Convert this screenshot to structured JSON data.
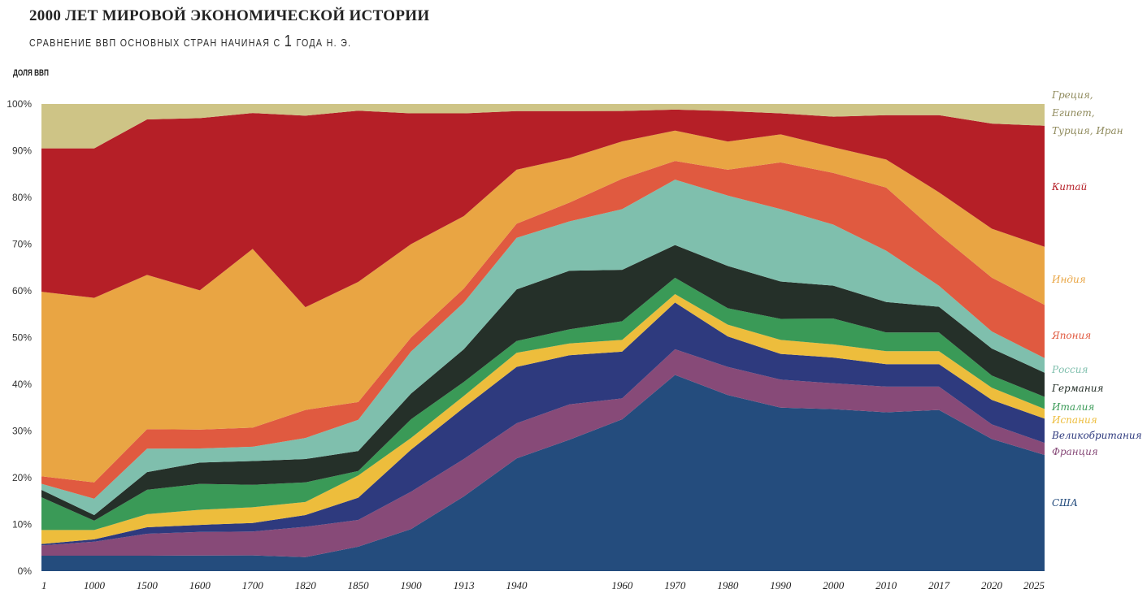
{
  "header": {
    "title": "2000 ЛЕТ МИРОВОЙ ЭКОНОМИЧЕСКОЙ ИСТОРИИ",
    "subtitle_pre": "СРАВНЕНИЕ ВВП ОСНОВНЫХ СТРАН НАЧИНАЯ С ",
    "subtitle_num": "1",
    "subtitle_post": " ГОДА Н. Э."
  },
  "chart_data": {
    "type": "area",
    "stacked": true,
    "normalized": true,
    "title": "2000 ЛЕТ МИРОВОЙ ЭКОНОМИЧЕСКОЙ ИСТОРИИ",
    "subtitle": "СРАВНЕНИЕ ВВП ОСНОВНЫХ СТРАН НАЧИНАЯ С 1 ГОДА Н. Э.",
    "ylabel": "ДОЛЯ ВВП",
    "xlabel": "",
    "ylim": [
      0,
      100
    ],
    "yticks": [
      "0%",
      "10%",
      "20%",
      "30%",
      "40%",
      "50%",
      "60%",
      "70%",
      "80%",
      "90%",
      "100%"
    ],
    "grid": false,
    "legend": "right",
    "x": [
      "1",
      "1000",
      "1500",
      "1600",
      "1700",
      "1820",
      "1850",
      "1900",
      "1913",
      "1940",
      "",
      "1960",
      "1970",
      "1980",
      "1990",
      "2000",
      "2010",
      "2017",
      "2020",
      "2025"
    ],
    "series": [
      {
        "name": "США",
        "color": "#244c7d",
        "values": [
          3.3,
          3.3,
          3.3,
          3.3,
          3.3,
          3.0,
          5.5,
          9.0,
          16.0,
          24.0,
          28.0,
          32.5,
          42.0,
          37.5,
          35.0,
          34.5,
          34.0,
          34.5,
          27.0,
          24.0
        ]
      },
      {
        "name": "Франция",
        "color": "#874a78",
        "values": [
          2.2,
          3.0,
          4.7,
          5.0,
          5.0,
          6.5,
          6.0,
          8.0,
          8.0,
          7.5,
          7.5,
          4.5,
          5.5,
          6.0,
          6.0,
          5.5,
          5.5,
          5.0,
          3.0,
          2.5
        ]
      },
      {
        "name": "Великобритания",
        "color": "#2e3a7e",
        "values": [
          0.3,
          0.5,
          1.4,
          1.5,
          1.8,
          2.5,
          5.0,
          9.0,
          11.0,
          12.0,
          10.5,
          10.0,
          10.0,
          6.5,
          5.5,
          5.5,
          4.8,
          4.8,
          5.0,
          5.0
        ]
      },
      {
        "name": "Испания",
        "color": "#edbd3c",
        "values": [
          3.0,
          2.0,
          2.8,
          3.2,
          3.3,
          2.8,
          5.0,
          2.5,
          2.5,
          3.0,
          2.5,
          2.5,
          1.8,
          2.5,
          3.0,
          2.8,
          2.8,
          2.8,
          2.5,
          2.0
        ]
      },
      {
        "name": "Италия",
        "color": "#3a9a57",
        "values": [
          7.0,
          2.0,
          5.2,
          5.5,
          4.7,
          4.2,
          1.0,
          4.0,
          3.0,
          2.5,
          3.0,
          4.0,
          3.5,
          3.5,
          4.5,
          5.5,
          4.0,
          4.0,
          2.5,
          2.5
        ]
      },
      {
        "name": "Германия",
        "color": "#253029",
        "values": [
          1.6,
          1.2,
          3.8,
          4.5,
          5.0,
          5.0,
          4.5,
          5.5,
          7.0,
          11.0,
          12.5,
          11.0,
          7.0,
          9.0,
          8.0,
          7.0,
          6.5,
          5.5,
          5.5,
          5.0
        ]
      },
      {
        "name": "Россия",
        "color": "#7fbfad",
        "values": [
          1.3,
          3.5,
          5.0,
          3.0,
          3.0,
          4.5,
          7.0,
          9.0,
          10.0,
          11.0,
          10.5,
          13.0,
          14.0,
          15.0,
          15.5,
          13.0,
          11.0,
          4.5,
          3.5,
          3.0
        ]
      },
      {
        "name": "Япония",
        "color": "#e05a40",
        "values": [
          1.6,
          3.5,
          4.2,
          4.0,
          4.0,
          6.0,
          4.0,
          3.0,
          3.0,
          3.0,
          4.0,
          6.5,
          4.0,
          5.5,
          10.0,
          11.0,
          13.5,
          11.0,
          11.0,
          11.0
        ]
      },
      {
        "name": "Индия",
        "color": "#e9a543",
        "values": [
          39.5,
          39.5,
          33.0,
          29.5,
          37.5,
          22.0,
          27.0,
          20.0,
          15.5,
          11.5,
          9.5,
          8.0,
          6.5,
          6.0,
          6.0,
          5.5,
          6.0,
          9.0,
          10.0,
          12.0
        ]
      },
      {
        "name": "Китай",
        "color": "#b51f27",
        "values": [
          30.7,
          32.0,
          33.3,
          36.5,
          28.5,
          41.0,
          38.5,
          28.0,
          22.0,
          12.5,
          10.0,
          6.5,
          4.5,
          6.5,
          4.5,
          6.5,
          9.5,
          16.5,
          21.5,
          25.0
        ]
      },
      {
        "name": "Греция, Египет, Турция, Иран",
        "color": "#cec486",
        "values": [
          9.5,
          9.5,
          3.3,
          3.0,
          1.9,
          2.5,
          1.5,
          2.0,
          2.0,
          1.5,
          1.5,
          1.5,
          1.2,
          1.5,
          2.0,
          2.7,
          2.4,
          2.4,
          4.0,
          4.5
        ]
      }
    ],
    "legend_labels": [
      {
        "name": "Греция,",
        "color": "#8f8a5c"
      },
      {
        "name": "Египет,",
        "color": "#8f8a5c"
      },
      {
        "name": "Турция, Иран",
        "color": "#8f8a5c"
      },
      {
        "name": "Китай",
        "color": "#b51f27"
      },
      {
        "name": "Индия",
        "color": "#e9a543"
      },
      {
        "name": "Япония",
        "color": "#e05a40"
      },
      {
        "name": "Россия",
        "color": "#7fbfad"
      },
      {
        "name": "Германия",
        "color": "#253029"
      },
      {
        "name": "Италия",
        "color": "#3a9a57"
      },
      {
        "name": "Испания",
        "color": "#edbd3c"
      },
      {
        "name": "Великобритания",
        "color": "#2e3a7e"
      },
      {
        "name": "Франция",
        "color": "#874a78"
      },
      {
        "name": "США",
        "color": "#244c7d"
      }
    ]
  }
}
